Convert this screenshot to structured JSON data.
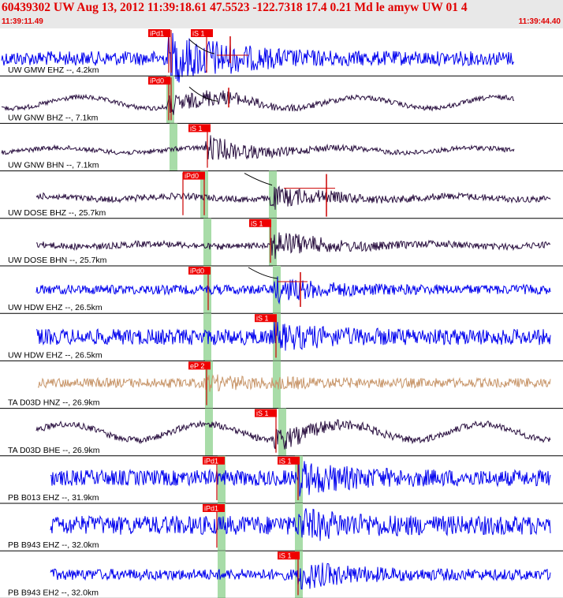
{
  "header": {
    "title": "60439302 UW Aug 13, 2012 11:39:18.61    47.5523 -122.7318 17.4 0.21 Md le amyw UW 01    4",
    "start_time": "11:39:11.49",
    "end_time": "11:39:44.40"
  },
  "colors": {
    "header_bg": "#e8e8e8",
    "header_text": "#e00000",
    "trace_blue": "#0000ee",
    "trace_dark": "#2a1040",
    "trace_tan": "#c8966a",
    "pick_band": "#a8dca8",
    "pick_label_bg": "#ee0000",
    "pick_line": "#cc0000",
    "separator": "#000000",
    "label_text": "#000000"
  },
  "traces": [
    {
      "label": "UW GMW EHZ --, 4.2km",
      "color": "blue",
      "picks": [
        {
          "label": "iPd1"
        },
        {
          "label": "iS 1"
        }
      ]
    },
    {
      "label": "UW GNW BHZ --, 7.1km",
      "color": "dark",
      "picks": [
        {
          "label": "iPd0"
        }
      ]
    },
    {
      "label": "UW GNW BHN --, 7.1km",
      "color": "dark",
      "picks": [
        {
          "label": "iS 1"
        }
      ]
    },
    {
      "label": "UW DOSE BHZ --, 25.7km",
      "color": "dark",
      "picks": [
        {
          "label": "iPd0"
        }
      ]
    },
    {
      "label": "UW DOSE BHN --, 25.7km",
      "color": "dark",
      "picks": [
        {
          "label": "iS 1"
        }
      ]
    },
    {
      "label": "UW HDW EHZ --, 26.5km",
      "color": "blue",
      "picks": [
        {
          "label": "iPd0"
        }
      ]
    },
    {
      "label": "UW HDW EHZ --, 26.5km",
      "color": "blue",
      "picks": [
        {
          "label": "iS 1"
        }
      ]
    },
    {
      "label": "TA D03D HNZ --, 26.9km",
      "color": "tan",
      "picks": [
        {
          "label": "eP 2"
        }
      ]
    },
    {
      "label": "TA D03D BHE --, 26.9km",
      "color": "dark",
      "picks": [
        {
          "label": "iS 1"
        }
      ]
    },
    {
      "label": "PB B013 EHZ --, 31.9km",
      "color": "blue",
      "picks": [
        {
          "label": "iPd1"
        },
        {
          "label": "iS 1"
        }
      ]
    },
    {
      "label": "PB B943 EHZ --, 32.0km",
      "color": "blue",
      "picks": [
        {
          "label": "iPd1"
        }
      ]
    },
    {
      "label": "PB B943 EH2 --, 32.0km",
      "color": "blue",
      "picks": [
        {
          "label": "iS 1"
        }
      ]
    }
  ]
}
